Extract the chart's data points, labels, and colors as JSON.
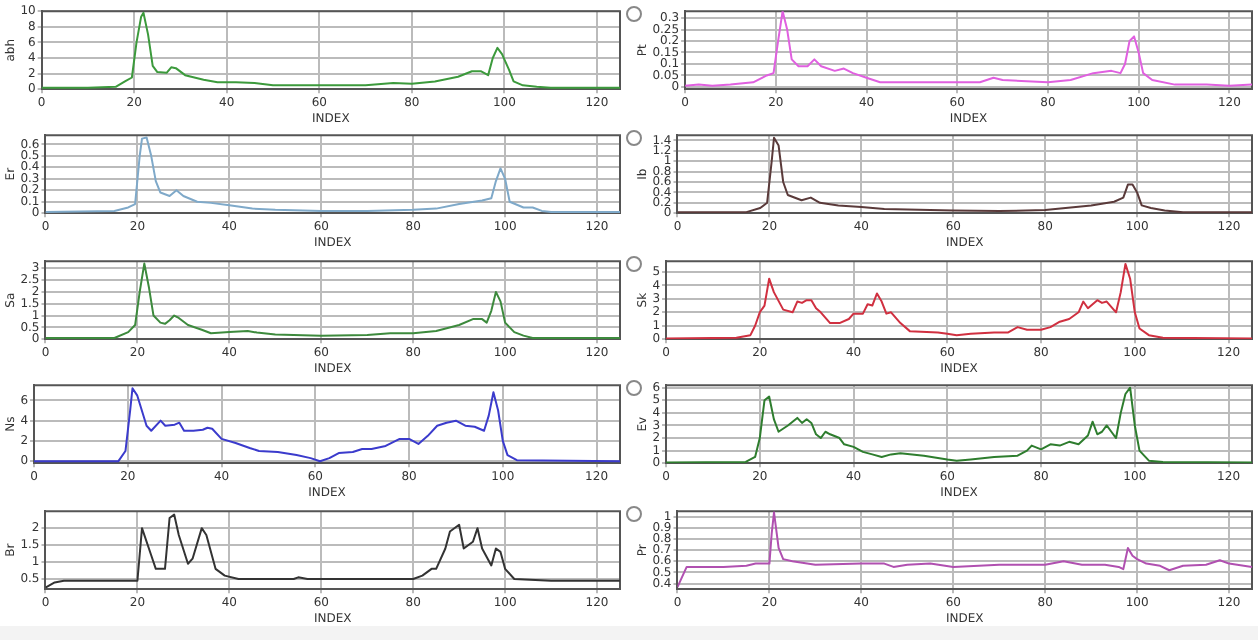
{
  "chart_data": [
    {
      "type": "line",
      "xlabel": "INDEX",
      "ylabel": "abh",
      "xlim": [
        0,
        125
      ],
      "xticks": [
        0,
        20,
        40,
        60,
        80,
        100,
        120
      ],
      "ylim": [
        0,
        10
      ],
      "yticks": [
        0,
        2,
        4,
        6,
        8,
        10
      ],
      "grid": true,
      "series": [
        {
          "color": "#3c9a3c",
          "x": [
            0,
            10,
            16,
            18,
            19.5,
            20.5,
            21.5,
            22,
            23,
            24,
            25,
            27,
            28,
            29,
            31,
            35,
            38,
            42,
            46,
            50,
            60,
            70,
            76,
            80,
            85,
            90,
            93,
            95,
            96.5,
            97.5,
            98.5,
            99.5,
            101,
            102,
            104,
            107,
            110,
            125
          ],
          "values": [
            0.2,
            0.2,
            0.3,
            1,
            1.5,
            6,
            9.3,
            9.8,
            7,
            3,
            2.2,
            2.1,
            2.8,
            2.7,
            1.8,
            1.2,
            0.9,
            0.9,
            0.8,
            0.5,
            0.5,
            0.5,
            0.8,
            0.7,
            1,
            1.6,
            2.3,
            2.3,
            1.8,
            4,
            5.3,
            4.5,
            2.5,
            1,
            0.5,
            0.3,
            0.2,
            0.2
          ]
        }
      ]
    },
    {
      "type": "line",
      "xlabel": "INDEX",
      "ylabel": "Pt",
      "xlim": [
        0,
        125
      ],
      "xticks": [
        0,
        20,
        40,
        60,
        80,
        100,
        120
      ],
      "ylim": [
        -0.01,
        0.33
      ],
      "yticks": [
        0,
        0.05,
        0.1,
        0.15,
        0.2,
        0.25,
        0.3
      ],
      "grid": true,
      "series": [
        {
          "color": "#e060e0",
          "x": [
            0,
            3,
            6,
            10,
            15,
            18,
            19.5,
            20.5,
            21.5,
            22.5,
            23.5,
            25,
            27,
            28.5,
            30,
            33,
            35,
            37,
            40,
            43,
            50,
            60,
            65,
            68,
            70,
            80,
            85,
            90,
            94,
            96,
            97,
            98,
            99,
            100,
            101,
            103,
            108,
            115,
            120,
            125
          ],
          "values": [
            0.005,
            0.01,
            0.005,
            0.01,
            0.02,
            0.05,
            0.06,
            0.2,
            0.33,
            0.25,
            0.12,
            0.09,
            0.09,
            0.12,
            0.09,
            0.07,
            0.08,
            0.06,
            0.04,
            0.02,
            0.02,
            0.02,
            0.02,
            0.04,
            0.03,
            0.02,
            0.03,
            0.06,
            0.07,
            0.06,
            0.1,
            0.2,
            0.22,
            0.15,
            0.06,
            0.03,
            0.01,
            0.01,
            0.005,
            0.01
          ]
        }
      ]
    },
    {
      "type": "line",
      "xlabel": "INDEX",
      "ylabel": "Er",
      "xlim": [
        0,
        125
      ],
      "xticks": [
        0,
        20,
        40,
        60,
        80,
        100,
        120
      ],
      "ylim": [
        0,
        0.68
      ],
      "yticks": [
        0,
        0.1,
        0.2,
        0.3,
        0.4,
        0.5,
        0.6
      ],
      "grid": true,
      "series": [
        {
          "color": "#7fa9c9",
          "x": [
            0,
            15,
            18,
            19.5,
            20.5,
            21,
            22,
            23,
            24,
            25,
            27,
            28.5,
            30,
            33,
            36,
            40,
            45,
            50,
            60,
            70,
            80,
            85,
            90,
            95,
            97,
            98,
            99,
            100,
            101,
            104,
            106,
            108,
            110,
            125
          ],
          "values": [
            0.01,
            0.02,
            0.05,
            0.08,
            0.5,
            0.65,
            0.66,
            0.5,
            0.28,
            0.18,
            0.15,
            0.2,
            0.15,
            0.1,
            0.09,
            0.07,
            0.04,
            0.03,
            0.02,
            0.02,
            0.03,
            0.04,
            0.08,
            0.11,
            0.13,
            0.28,
            0.39,
            0.3,
            0.1,
            0.05,
            0.05,
            0.02,
            0.01,
            0.01
          ]
        }
      ]
    },
    {
      "type": "line",
      "xlabel": "INDEX",
      "ylabel": "Ib",
      "xlim": [
        0,
        125
      ],
      "xticks": [
        0,
        20,
        40,
        60,
        80,
        100,
        120
      ],
      "ylim": [
        0,
        1.5
      ],
      "yticks": [
        0,
        0.2,
        0.4,
        0.6,
        0.8,
        1,
        1.2,
        1.4
      ],
      "grid": true,
      "series": [
        {
          "color": "#5a3a3a",
          "x": [
            0,
            15,
            18,
            19.5,
            20.5,
            21,
            22,
            23,
            24,
            27,
            29,
            31,
            35,
            40,
            45,
            60,
            70,
            80,
            90,
            95,
            97,
            98,
            99,
            100,
            101,
            103,
            106,
            110,
            125
          ],
          "values": [
            0.02,
            0.02,
            0.1,
            0.2,
            1,
            1.45,
            1.3,
            0.6,
            0.35,
            0.25,
            0.3,
            0.2,
            0.15,
            0.12,
            0.08,
            0.05,
            0.04,
            0.06,
            0.15,
            0.22,
            0.3,
            0.55,
            0.55,
            0.4,
            0.15,
            0.1,
            0.05,
            0.02,
            0.02
          ]
        }
      ]
    },
    {
      "type": "line",
      "xlabel": "INDEX",
      "ylabel": "Sa",
      "xlim": [
        0,
        125
      ],
      "xticks": [
        0,
        20,
        40,
        60,
        80,
        100,
        120
      ],
      "ylim": [
        0,
        3.3
      ],
      "yticks": [
        0,
        0.5,
        1,
        1.5,
        2,
        2.5,
        3
      ],
      "grid": true,
      "series": [
        {
          "color": "#3d8a3d",
          "x": [
            0,
            15,
            18,
            19.5,
            20.5,
            21.5,
            22.5,
            23.5,
            25,
            26,
            27,
            28,
            29,
            31,
            34,
            36,
            40,
            44,
            46,
            50,
            60,
            70,
            75,
            80,
            85,
            90,
            93,
            95,
            96,
            97,
            98,
            99,
            100,
            102,
            104,
            106,
            125
          ],
          "values": [
            0.05,
            0.05,
            0.3,
            0.6,
            2,
            3.2,
            2.2,
            1,
            0.7,
            0.65,
            0.8,
            1,
            0.9,
            0.6,
            0.4,
            0.25,
            0.3,
            0.35,
            0.28,
            0.2,
            0.15,
            0.18,
            0.25,
            0.25,
            0.35,
            0.6,
            0.85,
            0.85,
            0.7,
            1.2,
            2,
            1.6,
            0.7,
            0.3,
            0.15,
            0.05,
            0.05
          ]
        }
      ]
    },
    {
      "type": "line",
      "xlabel": "INDEX",
      "ylabel": "Sk",
      "xlim": [
        0,
        125
      ],
      "xticks": [
        0,
        20,
        40,
        60,
        80,
        100,
        120
      ],
      "ylim": [
        0,
        5.8
      ],
      "yticks": [
        0,
        1,
        2,
        3,
        4,
        5
      ],
      "grid": true,
      "series": [
        {
          "color": "#d03040",
          "x": [
            0,
            15,
            18,
            19,
            20,
            21,
            22,
            23,
            25,
            27,
            28,
            29,
            30,
            31,
            32,
            33,
            35,
            37,
            39,
            40,
            42,
            43,
            44,
            45,
            46,
            47,
            48,
            50,
            52,
            58,
            60,
            62,
            65,
            70,
            73,
            75,
            77,
            80,
            82,
            84,
            86,
            88,
            89,
            90,
            92,
            93,
            94,
            96,
            97,
            98,
            99,
            100,
            101,
            103,
            106,
            125
          ],
          "values": [
            0.05,
            0.1,
            0.3,
            1,
            2,
            2.5,
            4.5,
            3.5,
            2.2,
            2,
            2.8,
            2.7,
            2.9,
            2.9,
            2.3,
            2,
            1.2,
            1.2,
            1.5,
            1.9,
            1.9,
            2.6,
            2.5,
            3.4,
            2.8,
            1.9,
            2,
            1.2,
            0.6,
            0.5,
            0.4,
            0.3,
            0.4,
            0.5,
            0.5,
            0.9,
            0.7,
            0.7,
            0.9,
            1.3,
            1.5,
            2,
            2.8,
            2.3,
            2.9,
            2.7,
            2.8,
            2,
            3.5,
            5.6,
            4.5,
            2,
            0.8,
            0.3,
            0.1,
            0.05
          ]
        }
      ]
    },
    {
      "type": "line",
      "xlabel": "INDEX",
      "ylabel": "Ns",
      "xlim": [
        0,
        125
      ],
      "xticks": [
        0,
        20,
        40,
        60,
        80,
        100,
        120
      ],
      "ylim": [
        -0.2,
        7.5
      ],
      "yticks": [
        0,
        2,
        4,
        6
      ],
      "grid": true,
      "series": [
        {
          "color": "#3b3bcc",
          "x": [
            0,
            18,
            19.5,
            20.5,
            21,
            22,
            23,
            24,
            25,
            27,
            28,
            30,
            31,
            32,
            34,
            36,
            37,
            38,
            40,
            43,
            46,
            48,
            52,
            56,
            59,
            61,
            63,
            65,
            68,
            70,
            72,
            75,
            78,
            80,
            82,
            84,
            86,
            88,
            90,
            92,
            94,
            96,
            97,
            98,
            99,
            100,
            101,
            103,
            125
          ],
          "values": [
            0,
            0,
            1,
            5,
            7.2,
            6.5,
            5,
            3.5,
            3,
            4,
            3.5,
            3.6,
            3.8,
            3,
            3,
            3.1,
            3.3,
            3.2,
            2.2,
            1.8,
            1.3,
            1,
            0.9,
            0.6,
            0.3,
            0,
            0.3,
            0.8,
            0.9,
            1.2,
            1.2,
            1.5,
            2.2,
            2.2,
            1.7,
            2.5,
            3.5,
            3.8,
            4,
            3.5,
            3.4,
            3,
            4.5,
            6.8,
            5,
            2,
            0.6,
            0.1,
            0
          ]
        }
      ]
    },
    {
      "type": "line",
      "xlabel": "INDEX",
      "ylabel": "Ev",
      "xlim": [
        0,
        125
      ],
      "xticks": [
        0,
        20,
        40,
        60,
        80,
        100,
        120
      ],
      "ylim": [
        0,
        6.2
      ],
      "yticks": [
        0,
        1,
        2,
        3,
        4,
        5,
        6
      ],
      "grid": true,
      "series": [
        {
          "color": "#2e7d2e",
          "x": [
            0,
            17,
            19,
            20,
            21,
            22,
            23,
            24,
            26,
            28,
            29,
            30,
            31,
            32,
            33,
            34,
            35,
            37,
            38,
            40,
            42,
            44,
            46,
            48,
            50,
            55,
            60,
            62,
            65,
            70,
            75,
            77,
            78,
            80,
            82,
            84,
            86,
            88,
            90,
            91,
            92,
            93,
            94,
            95,
            96,
            97,
            98,
            99,
            100,
            101,
            103,
            106,
            125
          ],
          "values": [
            0.05,
            0.1,
            0.5,
            2,
            5,
            5.3,
            3.5,
            2.5,
            3,
            3.6,
            3.2,
            3.5,
            3.2,
            2.3,
            2,
            2.5,
            2.3,
            2,
            1.5,
            1.3,
            0.9,
            0.7,
            0.5,
            0.7,
            0.8,
            0.6,
            0.3,
            0.2,
            0.3,
            0.5,
            0.6,
            1,
            1.4,
            1.1,
            1.5,
            1.4,
            1.7,
            1.5,
            2.2,
            3.3,
            2.3,
            2.5,
            3,
            2.5,
            2,
            4,
            5.5,
            6,
            3,
            1,
            0.2,
            0.1,
            0.05
          ]
        }
      ]
    },
    {
      "type": "line",
      "xlabel": "INDEX",
      "ylabel": "Br",
      "xlim": [
        0,
        125
      ],
      "xticks": [
        0,
        20,
        40,
        60,
        80,
        100,
        120
      ],
      "ylim": [
        0.2,
        2.5
      ],
      "yticks": [
        0.5,
        1,
        1.5,
        2
      ],
      "grid": true,
      "series": [
        {
          "color": "#333333",
          "x": [
            0,
            2,
            4,
            20,
            21,
            23,
            24,
            26,
            27,
            28,
            29,
            31,
            32,
            34,
            35,
            37,
            39,
            42,
            54,
            55,
            57,
            80,
            82,
            84,
            85,
            87,
            88,
            90,
            91,
            93,
            94,
            95,
            97,
            98,
            99,
            100,
            102,
            110,
            125
          ],
          "values": [
            0.25,
            0.4,
            0.45,
            0.45,
            2,
            1.2,
            0.8,
            0.8,
            2.3,
            2.4,
            1.8,
            0.95,
            1.1,
            2,
            1.8,
            0.8,
            0.6,
            0.5,
            0.5,
            0.55,
            0.5,
            0.5,
            0.6,
            0.8,
            0.8,
            1.4,
            1.9,
            2.1,
            1.4,
            1.6,
            2,
            1.4,
            0.9,
            1.4,
            1.3,
            0.8,
            0.5,
            0.45,
            0.45
          ]
        }
      ]
    },
    {
      "type": "line",
      "xlabel": "INDEX",
      "ylabel": "Pr",
      "xlim": [
        0,
        125
      ],
      "xticks": [
        0,
        20,
        40,
        60,
        80,
        100,
        120
      ],
      "ylim": [
        0.35,
        1.05
      ],
      "yticks": [
        0.4,
        0.5,
        0.6,
        0.7,
        0.8,
        0.9,
        1
      ],
      "grid": true,
      "series": [
        {
          "color": "#b050b0",
          "x": [
            0,
            2,
            10,
            15,
            17,
            20,
            20.5,
            21,
            22,
            23,
            25,
            30,
            40,
            45,
            47,
            50,
            55,
            60,
            70,
            80,
            84,
            88,
            93,
            96,
            97,
            98,
            99,
            100,
            102,
            105,
            107,
            110,
            115,
            118,
            120,
            125
          ],
          "values": [
            0.37,
            0.55,
            0.55,
            0.56,
            0.58,
            0.58,
            0.85,
            1.04,
            0.72,
            0.62,
            0.6,
            0.57,
            0.58,
            0.58,
            0.55,
            0.57,
            0.58,
            0.55,
            0.57,
            0.57,
            0.6,
            0.57,
            0.57,
            0.55,
            0.53,
            0.72,
            0.65,
            0.62,
            0.58,
            0.56,
            0.52,
            0.56,
            0.57,
            0.61,
            0.58,
            0.55
          ]
        }
      ]
    }
  ]
}
